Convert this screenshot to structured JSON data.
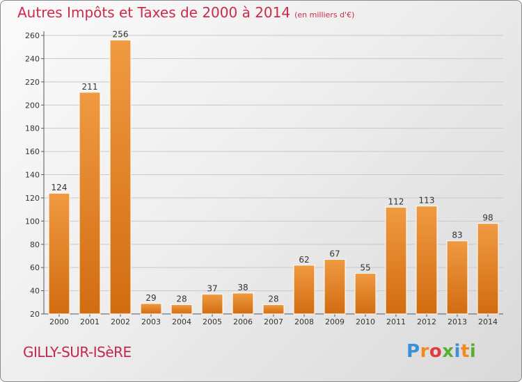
{
  "header": {
    "title": "Autres Impôts et Taxes de 2000 à 2014",
    "subtitle": "(en milliers d'€)"
  },
  "footer": {
    "commune": "GILLY-SUR-ISèRE",
    "logo": {
      "letters": [
        "P",
        "r",
        "o",
        "x",
        "i",
        "t",
        "i"
      ],
      "colors": [
        "#3b8fd6",
        "#f08a1e",
        "#e23b3b",
        "#58b031",
        "#3b8fd6",
        "#f08a1e",
        "#58b031"
      ]
    }
  },
  "colors": {
    "bar": "#f09a42",
    "bar_dark": "#d26c10",
    "title": "#cc2a4a",
    "grid": "#c8c8c8"
  },
  "chart_data": {
    "type": "bar",
    "title": "Autres Impôts et Taxes de 2000 à 2014",
    "subtitle": "(en milliers d'€)",
    "categories": [
      "2000",
      "2001",
      "2002",
      "2003",
      "2004",
      "2005",
      "2006",
      "2007",
      "2008",
      "2009",
      "2010",
      "2011",
      "2012",
      "2013",
      "2014"
    ],
    "values": [
      124,
      211,
      256,
      29,
      28,
      37,
      38,
      28,
      62,
      67,
      55,
      112,
      113,
      83,
      98
    ],
    "ylim": [
      20,
      260
    ],
    "yticks": [
      20,
      40,
      60,
      80,
      100,
      120,
      140,
      160,
      180,
      200,
      220,
      240,
      260
    ],
    "grid": true,
    "xlabel": "",
    "ylabel": ""
  }
}
